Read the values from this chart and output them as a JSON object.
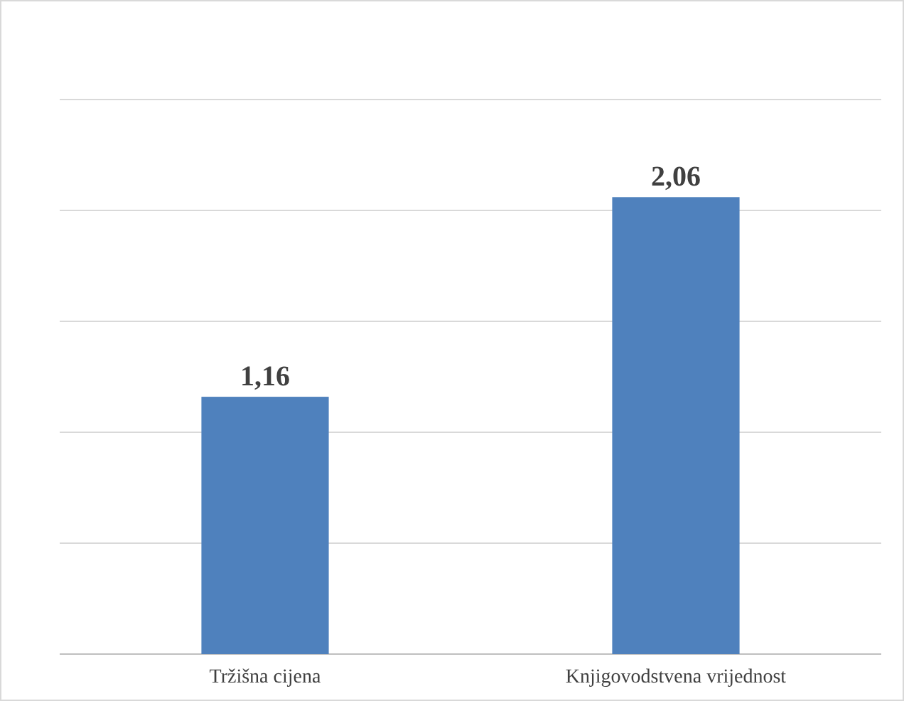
{
  "chart_data": {
    "type": "bar",
    "categories": [
      "Tržišna cijena",
      "Knjigovodstvena vrijednost"
    ],
    "values": [
      1.16,
      2.06
    ],
    "value_labels": [
      "1,16",
      "2,06"
    ],
    "color": "#4f81bd",
    "ylim": [
      0,
      2.5
    ],
    "yticks": [
      {
        "value": 0,
        "label": null
      },
      {
        "value": 0.5,
        "label": null
      },
      {
        "value": 1,
        "label": null
      },
      {
        "value": 1.5,
        "label": null
      },
      {
        "value": 2,
        "label": null
      },
      {
        "value": 2.5,
        "label": null
      }
    ],
    "tick_labels": "x",
    "grid": "y"
  }
}
